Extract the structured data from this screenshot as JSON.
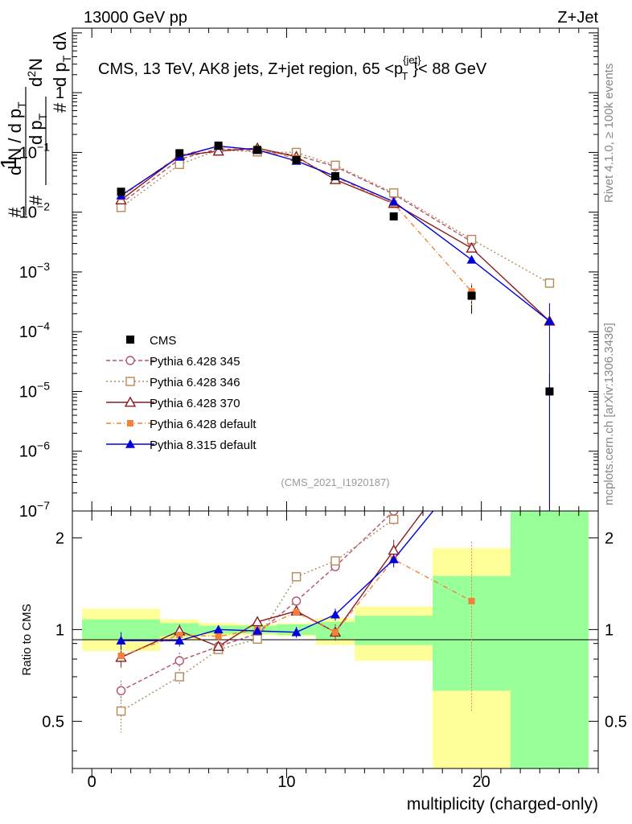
{
  "header": {
    "left": "13000 GeV pp",
    "right": "Z+Jet",
    "side_top": "Rivet 4.1.0, ≥ 100k events",
    "side_bottom": "mcplots.cern.ch [arXiv:1306.3436]"
  },
  "chart_data": {
    "type": "line",
    "title": "CMS, 13 TeV, AK8 jets, Z+jet region, 65 <p_T^{jet}< 88 GeV",
    "ylabel": "1/(dN/dp_T) d²N/(dp_T dλ)",
    "xlabel": "multiplicity (charged-only)",
    "ratio_ylabel": "Ratio to CMS",
    "analysis_tag": "(CMS_2021_I1920187)",
    "xlim": [
      -1,
      26
    ],
    "ylim": [
      1e-07,
      12
    ],
    "ylog": true,
    "ratio_ylim": [
      0.35,
      2.45
    ],
    "ratio_log": true,
    "x_ticks": [
      0,
      10,
      20
    ],
    "y_ticks": [
      {
        "value": 1e-07,
        "base": "10",
        "exp": "−7"
      },
      {
        "value": 1e-06,
        "base": "10",
        "exp": "−6"
      },
      {
        "value": 1e-05,
        "base": "10",
        "exp": "−5"
      },
      {
        "value": 0.0001,
        "base": "10",
        "exp": "−4"
      },
      {
        "value": 0.001,
        "base": "10",
        "exp": "−3"
      },
      {
        "value": 0.01,
        "base": "10",
        "exp": "−2"
      },
      {
        "value": 0.1,
        "base": "10",
        "exp": "−1"
      },
      {
        "value": 1,
        "base": "1",
        "exp": ""
      }
    ],
    "ratio_ticks": [
      0.5,
      1,
      2
    ],
    "bins": [
      [
        -0.5,
        3.5
      ],
      [
        3.5,
        5.5
      ],
      [
        5.5,
        7.5
      ],
      [
        7.5,
        9.5
      ],
      [
        9.5,
        11.5
      ],
      [
        11.5,
        13.5
      ],
      [
        13.5,
        17.5
      ],
      [
        17.5,
        21.5
      ],
      [
        21.5,
        25.5
      ]
    ],
    "x": [
      1.5,
      4.5,
      6.5,
      8.5,
      10.5,
      12.5,
      15.5,
      19.5,
      23.5
    ],
    "band_inner": [
      [
        0.93,
        1.08
      ],
      [
        0.95,
        1.05
      ],
      [
        0.97,
        1.03
      ],
      [
        0.97,
        1.03
      ],
      [
        0.96,
        1.04
      ],
      [
        0.93,
        1.06
      ],
      [
        0.89,
        1.11
      ],
      [
        0.63,
        1.5
      ],
      [
        0.35,
        2.45
      ]
    ],
    "band_outer": [
      [
        0.85,
        1.17
      ],
      [
        0.92,
        1.08
      ],
      [
        0.95,
        1.05
      ],
      [
        0.96,
        1.04
      ],
      [
        0.95,
        1.05
      ],
      [
        0.89,
        1.09
      ],
      [
        0.79,
        1.19
      ],
      [
        0.35,
        1.85
      ],
      [
        0.35,
        2.45
      ]
    ],
    "data": {
      "name": "CMS",
      "color": "#000000",
      "values": [
        0.022,
        0.097,
        0.13,
        0.11,
        0.075,
        0.04,
        0.0085,
        0.0004,
        1e-05
      ],
      "errors": [
        0.002,
        0.005,
        0.006,
        0.005,
        0.004,
        0.003,
        0.001,
        0.0002,
        9.9e-06
      ]
    },
    "series": [
      {
        "name": "Pythia 6.428 345",
        "color": "#b3536b",
        "dash": "5,3",
        "marker": "circle-open",
        "values": [
          0.014,
          0.077,
          0.115,
          0.106,
          0.09,
          0.058,
          0.02,
          0.0032,
          null
        ],
        "ratio": [
          0.63,
          0.79,
          0.88,
          0.97,
          1.24,
          1.61,
          2.45,
          null,
          null
        ],
        "ratio_err": [
          0.05,
          0.05,
          0.03,
          0.03,
          0.04,
          0.06,
          0.1,
          null,
          null
        ]
      },
      {
        "name": "Pythia 6.428 346",
        "color": "#b5895b",
        "dash": "2,3",
        "marker": "square-open",
        "values": [
          0.012,
          0.063,
          0.11,
          0.102,
          0.1,
          0.061,
          0.021,
          0.0035,
          0.00065
        ],
        "ratio": [
          0.54,
          0.7,
          0.86,
          0.93,
          1.49,
          1.68,
          2.3,
          null,
          null
        ],
        "ratio_err": [
          0.08,
          0.04,
          0.03,
          0.03,
          0.05,
          0.06,
          0.1,
          null,
          null
        ]
      },
      {
        "name": "Pythia 6.428 370",
        "color": "#8b1a1a",
        "dash": "",
        "marker": "triangle-open",
        "values": [
          0.016,
          0.088,
          0.105,
          0.118,
          0.085,
          0.035,
          0.014,
          0.0025,
          0.00015
        ],
        "ratio": [
          0.81,
          0.99,
          0.88,
          1.06,
          1.15,
          0.98,
          1.82,
          4.0,
          null
        ],
        "ratio_err": [
          0.06,
          0.05,
          0.03,
          0.03,
          0.04,
          0.06,
          0.15,
          null,
          null
        ]
      },
      {
        "name": "Pythia 6.428 default",
        "color": "#f4803a",
        "dash": "6,3,1,3",
        "marker": "square-filled",
        "values": [
          0.018,
          0.09,
          0.125,
          0.11,
          0.08,
          0.039,
          0.014,
          0.00047,
          null
        ],
        "ratio": [
          0.82,
          0.96,
          0.95,
          1.0,
          1.14,
          0.98,
          1.7,
          1.24,
          null
        ],
        "ratio_err": [
          0.04,
          0.04,
          0.03,
          0.03,
          0.04,
          0.05,
          0.08,
          0.7,
          null
        ]
      },
      {
        "name": "Pythia 8.315 default",
        "color": "#0000dd",
        "dash": "",
        "marker": "triangle-filled",
        "values": [
          0.019,
          0.085,
          0.128,
          0.11,
          0.072,
          0.04,
          0.015,
          0.0016,
          0.00015
        ],
        "ratio": [
          0.92,
          0.92,
          1.0,
          0.99,
          0.98,
          1.12,
          1.7,
          3.5,
          null
        ],
        "ratio_err": [
          0.06,
          0.04,
          0.03,
          0.03,
          0.04,
          0.05,
          0.1,
          null,
          null
        ]
      }
    ]
  }
}
